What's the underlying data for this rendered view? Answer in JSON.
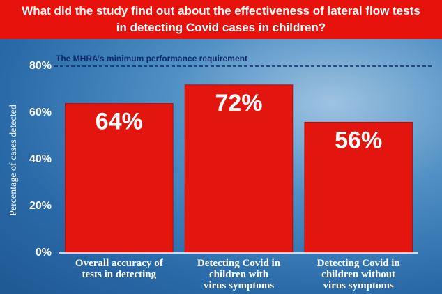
{
  "chart_data": {
    "type": "bar",
    "title": "What did the study find out about the effectiveness of lateral flow tests in detecting Covid cases in children?",
    "y_label": "Percentage of cases detected",
    "categories": [
      "Overall accuracy of\ntests in detecting",
      "Detecting Covid in\nchildren with\nvirus symptoms",
      "Detecting Covid in\nchildren without\nvirus symptoms"
    ],
    "values": [
      64,
      72,
      56
    ],
    "value_labels": [
      "64%",
      "72%",
      "56%"
    ],
    "color": "#e3150f",
    "ylim": [
      0,
      80
    ],
    "yticks": [
      {
        "value": 0,
        "label": "0%"
      },
      {
        "value": 20,
        "label": "20%"
      },
      {
        "value": 40,
        "label": "40%"
      },
      {
        "value": 60,
        "label": "60%"
      },
      {
        "value": 80,
        "label": "80%"
      }
    ],
    "reference_line": {
      "value": 80,
      "label": "The MHRA’s minimum performance requirement",
      "color": "#0d2a6b"
    }
  }
}
